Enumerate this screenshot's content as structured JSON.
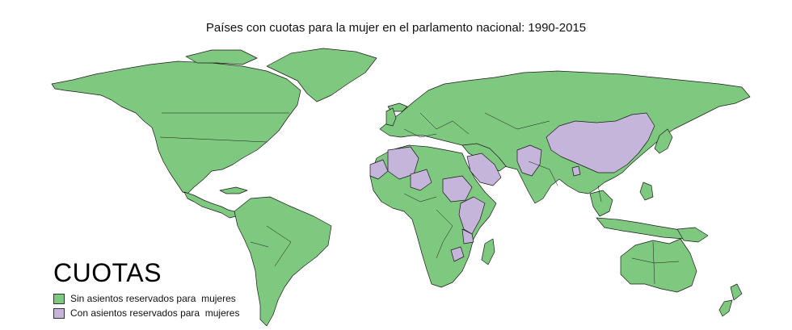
{
  "title": "Países con cuotas para la mujer en el parlamento nacional: 1990-2015",
  "legend": {
    "heading": "CUOTAS",
    "items": [
      {
        "label": "Sin asientos reservados para  mujeres",
        "color": "#7ec87f"
      },
      {
        "label": "Con asientos reservados para  mujeres",
        "color": "#c6b5da"
      }
    ]
  },
  "colors": {
    "no_reserved": "#7ec87f",
    "reserved": "#c6b5da",
    "border": "#1a1a1a"
  }
}
